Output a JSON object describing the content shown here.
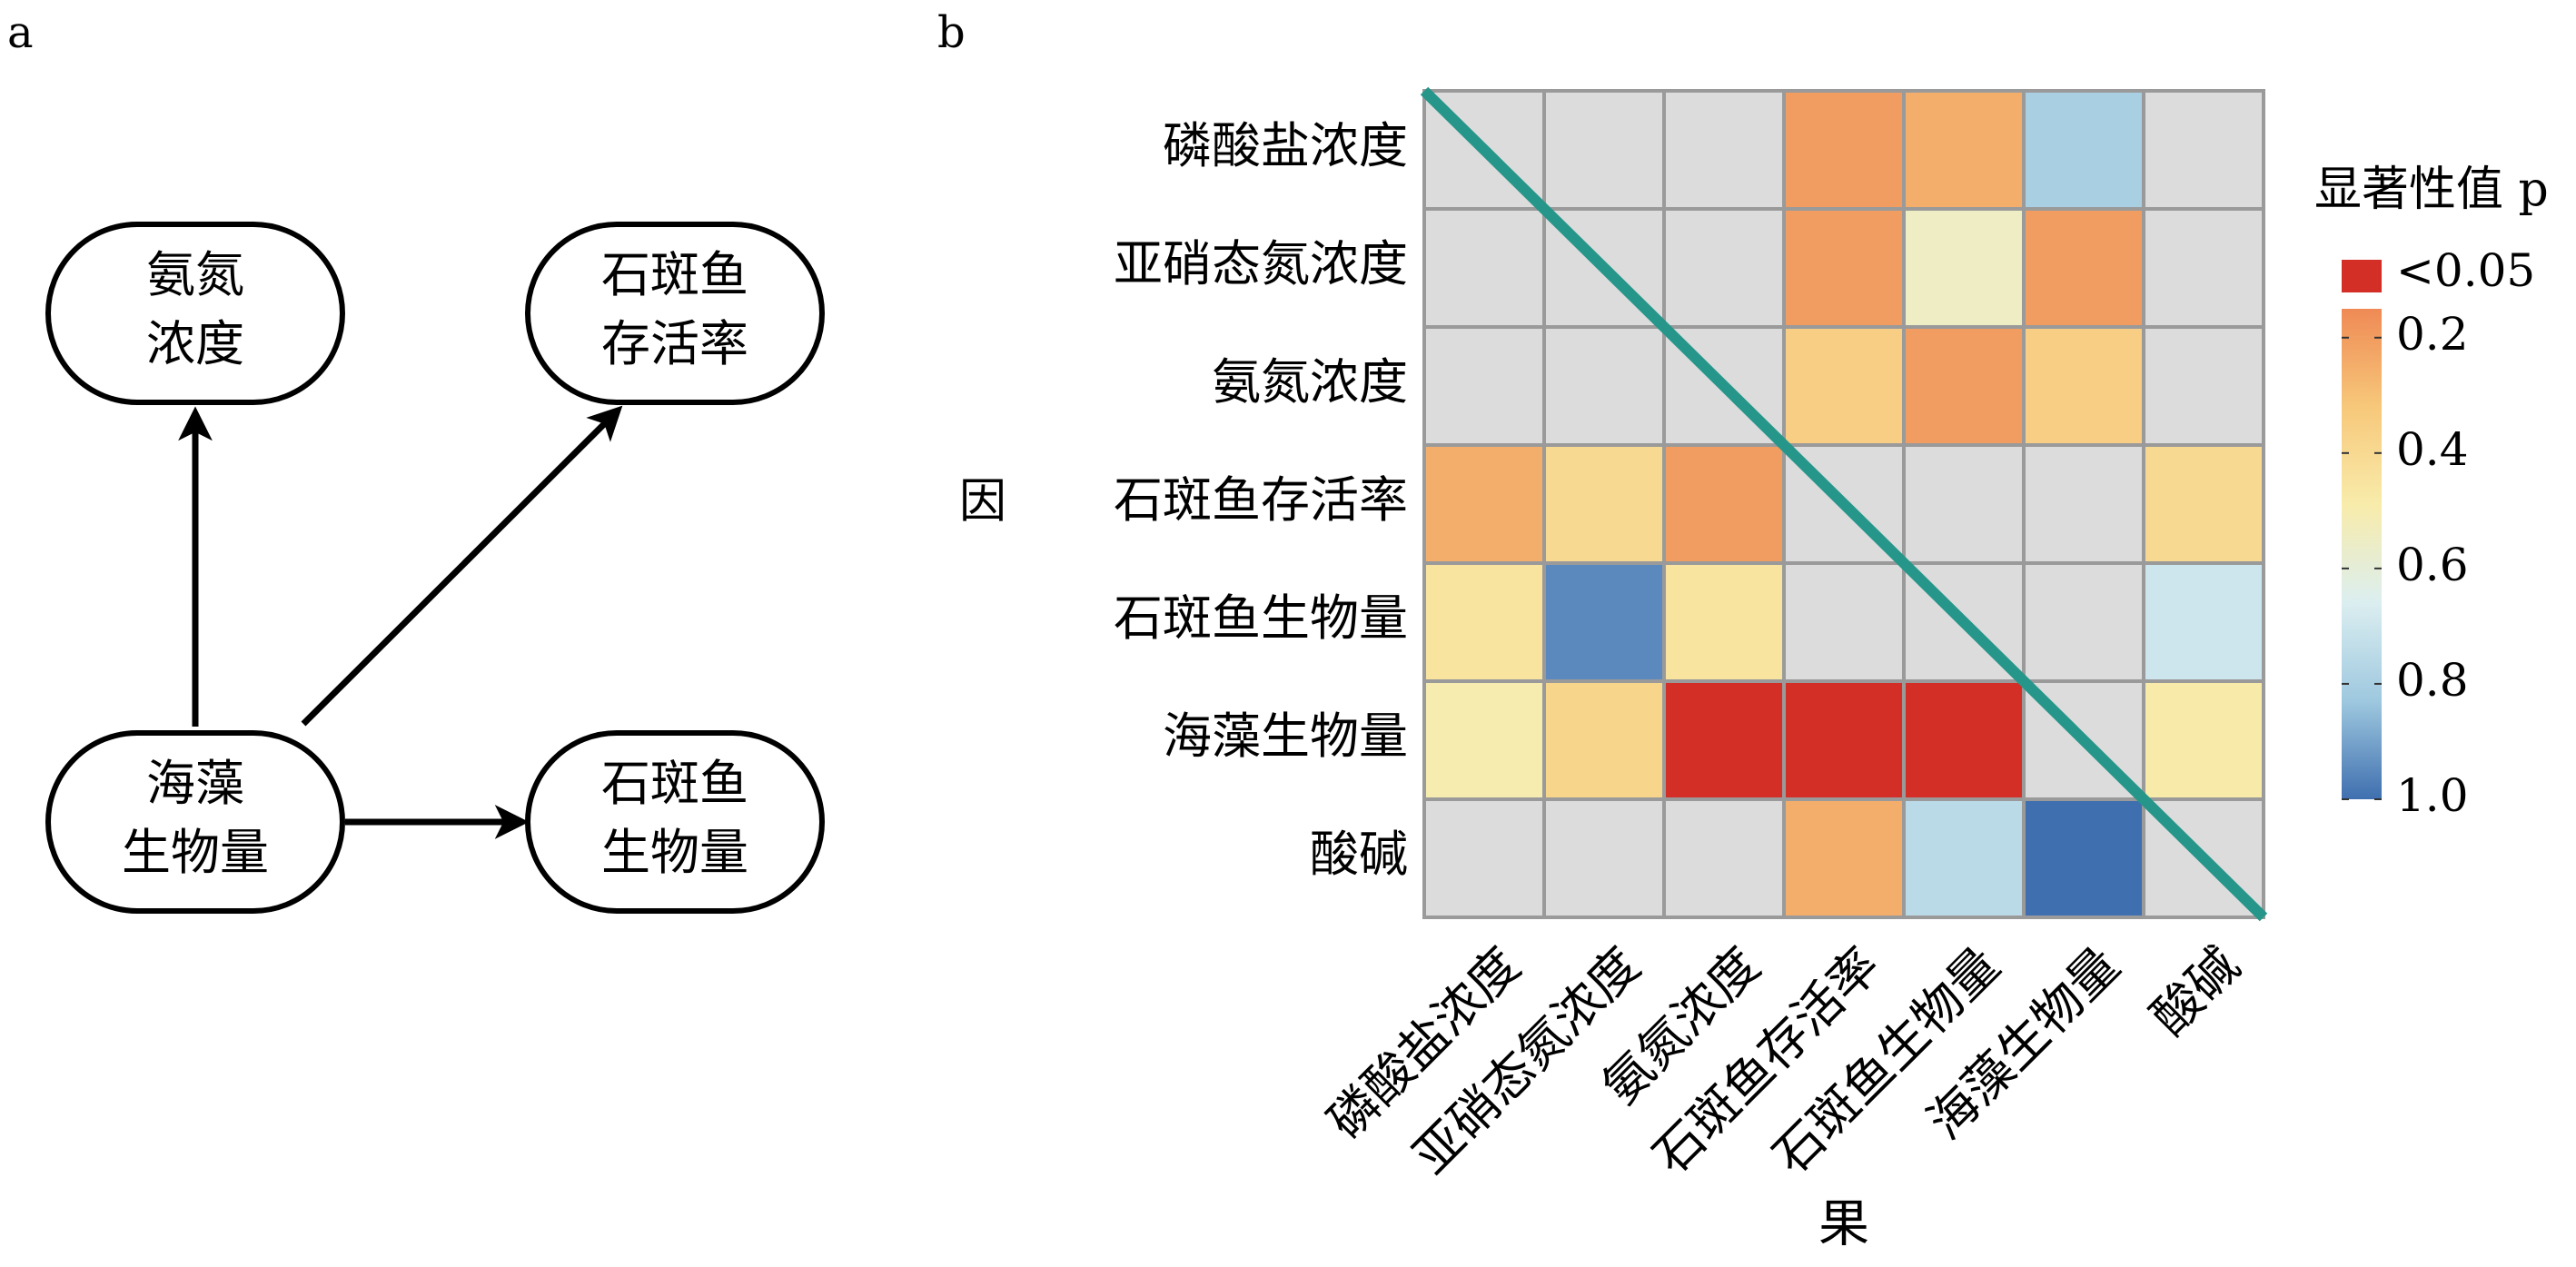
{
  "panels": {
    "a": {
      "label": "a"
    },
    "b": {
      "label": "b"
    }
  },
  "diagram": {
    "nodes": [
      {
        "id": "ammonia",
        "lines": [
          "氨氮",
          "浓度"
        ]
      },
      {
        "id": "survival",
        "lines": [
          "石斑鱼",
          "存活率"
        ]
      },
      {
        "id": "seaweed",
        "lines": [
          "海藻",
          "生物量"
        ]
      },
      {
        "id": "fish_biomass",
        "lines": [
          "石斑鱼",
          "生物量"
        ]
      }
    ],
    "edges": [
      {
        "from": "seaweed",
        "to": "ammonia"
      },
      {
        "from": "seaweed",
        "to": "survival"
      },
      {
        "from": "seaweed",
        "to": "fish_biomass"
      }
    ]
  },
  "chart_data": {
    "type": "heatmap",
    "title": "",
    "xlabel": "果",
    "ylabel": "因",
    "rows": [
      "磷酸盐浓度",
      "亚硝态氮浓度",
      "氨氮浓度",
      "石斑鱼存活率",
      "石斑鱼生物量",
      "海藻生物量",
      "酸碱"
    ],
    "cols": [
      "磷酸盐浓度",
      "亚硝态氮浓度",
      "氨氮浓度",
      "石斑鱼存活率",
      "石斑鱼生物量",
      "海藻生物量",
      "酸碱"
    ],
    "values": [
      [
        null,
        null,
        null,
        0.2,
        0.25,
        0.8,
        null
      ],
      [
        null,
        null,
        null,
        0.2,
        0.55,
        0.2,
        null
      ],
      [
        null,
        null,
        null,
        0.35,
        0.2,
        0.35,
        null
      ],
      [
        0.25,
        0.4,
        0.2,
        null,
        null,
        null,
        0.4
      ],
      [
        0.45,
        0.95,
        0.45,
        null,
        null,
        null,
        0.7
      ],
      [
        0.5,
        0.38,
        0.04,
        0.04,
        0.04,
        null,
        0.48
      ],
      [
        null,
        null,
        null,
        0.25,
        0.75,
        1.0,
        null
      ]
    ],
    "missing_color": "#dcdcdc",
    "diagonal_line_color": "#26968a",
    "legend": {
      "title": "显著性值 p",
      "sig_label": "<0.05",
      "sig_color": "#d32f27",
      "ticks": [
        "0.2",
        "0.4",
        "0.6",
        "0.8",
        "1.0"
      ],
      "tick_values": [
        0.2,
        0.4,
        0.6,
        0.8,
        1.0
      ],
      "range": [
        0.15,
        1.0
      ],
      "placement": "right",
      "colors": [
        "#ef8a55",
        "#f7c87a",
        "#f8ecab",
        "#dbeef0",
        "#9ec8df",
        "#3f6faf"
      ]
    }
  }
}
